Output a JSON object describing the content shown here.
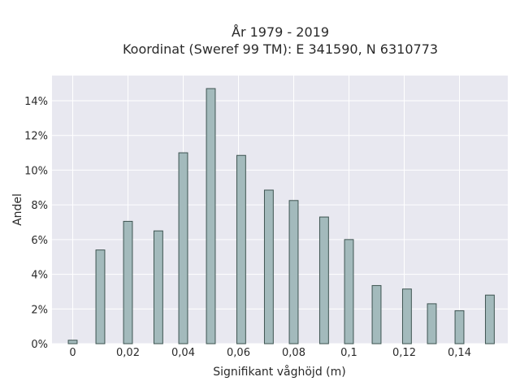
{
  "chart_data": {
    "type": "bar",
    "title": [
      "År 1979 - 2019",
      "Koordinat (Sweref 99 TM): E 341590, N 6310773"
    ],
    "xlabel": "Signifikant våghöjd (m)",
    "ylabel": "Andel",
    "xlim": [
      -0.0075,
      0.1575
    ],
    "ylim": [
      0,
      0.1545
    ],
    "grid": true,
    "x_ticks": [
      0,
      0.02,
      0.04,
      0.06,
      0.08,
      0.1,
      0.12,
      0.14
    ],
    "x_tick_labels": [
      "0",
      "0,02",
      "0,04",
      "0,06",
      "0,08",
      "0,1",
      "0,12",
      "0,14"
    ],
    "y_ticks": [
      0,
      0.02,
      0.04,
      0.06,
      0.08,
      0.1,
      0.12,
      0.14
    ],
    "y_tick_labels": [
      "0%",
      "2%",
      "4%",
      "6%",
      "8%",
      "10%",
      "12%",
      "14%"
    ],
    "x": [
      0.0,
      0.01,
      0.02,
      0.031,
      0.04,
      0.05,
      0.061,
      0.071,
      0.08,
      0.091,
      0.1,
      0.11,
      0.121,
      0.13,
      0.14,
      0.151
    ],
    "values": [
      0.002,
      0.054,
      0.0705,
      0.065,
      0.11,
      0.147,
      0.1085,
      0.0885,
      0.0825,
      0.073,
      0.06,
      0.0335,
      0.0315,
      0.023,
      0.019,
      0.028
    ],
    "colors": {
      "plot_background": "#e8e8f0",
      "grid": "#ffffff",
      "bar_fill": "#a3babc",
      "bar_edge": "#3e5451"
    }
  }
}
